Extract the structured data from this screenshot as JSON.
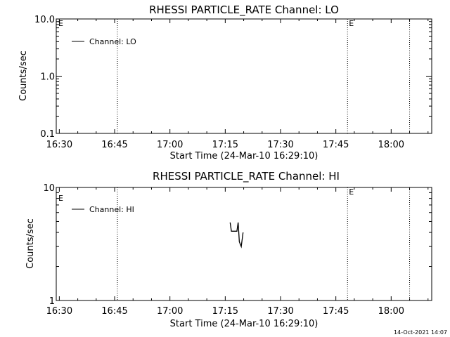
{
  "footer": {
    "timestamp": "14-Oct-2021 14:07"
  },
  "chart_data": [
    {
      "type": "line",
      "title": "RHESSI PARTICLE_RATE Channel: LO",
      "xlabel": "Start Time (24-Mar-10 16:29:10)",
      "ylabel": "Counts/sec",
      "y_scale": "log",
      "ylim": [
        0.1,
        10.0
      ],
      "y_ticks": [
        {
          "value": 10.0,
          "label": "10.0"
        },
        {
          "value": 1.0,
          "label": "1.0"
        },
        {
          "value": 0.1,
          "label": "0.1"
        }
      ],
      "x_range": [
        "16:29:10",
        "18:11:00"
      ],
      "x_ticks": [
        "16:30",
        "16:45",
        "17:00",
        "17:15",
        "17:30",
        "17:45",
        "18:00"
      ],
      "markers": [
        {
          "time": "16:45:45",
          "label": ""
        },
        {
          "time": "17:48:10",
          "label": "E"
        },
        {
          "time": "18:05:00",
          "label": ""
        }
      ],
      "start_marker_label": "E",
      "legend": {
        "placement": "top-left",
        "entries": [
          "Channel: LO"
        ]
      },
      "series": [
        {
          "name": "Channel: LO",
          "points": []
        }
      ]
    },
    {
      "type": "line",
      "title": "RHESSI PARTICLE_RATE Channel: HI",
      "xlabel": "Start Time (24-Mar-10 16:29:10)",
      "ylabel": "Counts/sec",
      "y_scale": "log",
      "ylim": [
        1,
        10
      ],
      "y_ticks": [
        {
          "value": 10,
          "label": "10"
        },
        {
          "value": 1,
          "label": "1"
        }
      ],
      "x_range": [
        "16:29:10",
        "18:11:00"
      ],
      "x_ticks": [
        "16:30",
        "16:45",
        "17:00",
        "17:15",
        "17:30",
        "17:45",
        "18:00"
      ],
      "markers": [
        {
          "time": "16:45:45",
          "label": ""
        },
        {
          "time": "17:48:10",
          "label": "E"
        },
        {
          "time": "18:05:00",
          "label": ""
        }
      ],
      "start_marker_label": "E",
      "legend": {
        "placement": "top-left",
        "entries": [
          "Channel: HI"
        ]
      },
      "series": [
        {
          "name": "Channel: HI",
          "points": [
            {
              "x": "17:16:20",
              "y": 4.9
            },
            {
              "x": "17:16:40",
              "y": 4.1
            },
            {
              "x": "17:18:10",
              "y": 4.1
            },
            {
              "x": "17:18:30",
              "y": 4.9
            },
            {
              "x": "17:18:50",
              "y": 3.3
            },
            {
              "x": "17:19:20",
              "y": 3.0
            },
            {
              "x": "17:19:50",
              "y": 4.0
            }
          ]
        }
      ]
    }
  ]
}
